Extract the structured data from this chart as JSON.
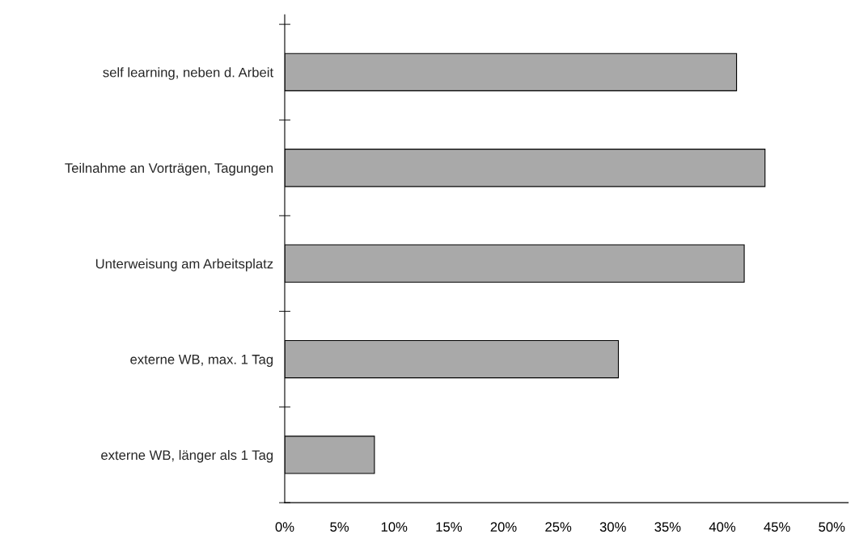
{
  "chart_data": {
    "type": "bar",
    "orientation": "horizontal",
    "categories": [
      "self learning, neben d. Arbeit",
      "Teilnahme an Vorträgen, Tagungen",
      "Unterweisung am Arbeitsplatz",
      "externe WB, max. 1 Tag",
      "externe WB, länger als 1 Tag"
    ],
    "values": [
      41.3,
      43.9,
      42.0,
      30.5,
      8.2
    ],
    "color": "#a9a9a9",
    "xlim": [
      0,
      51.5
    ],
    "xticks": [
      {
        "value": 0,
        "label": "0%"
      },
      {
        "value": 5,
        "label": "5%"
      },
      {
        "value": 10,
        "label": "10%"
      },
      {
        "value": 15,
        "label": "15%"
      },
      {
        "value": 20,
        "label": "20%"
      },
      {
        "value": 25,
        "label": "25%"
      },
      {
        "value": 30,
        "label": "30%"
      },
      {
        "value": 35,
        "label": "35%"
      },
      {
        "value": 40,
        "label": "40%"
      },
      {
        "value": 45,
        "label": "45%"
      },
      {
        "value": 50,
        "label": "50%"
      }
    ],
    "grid": false
  }
}
